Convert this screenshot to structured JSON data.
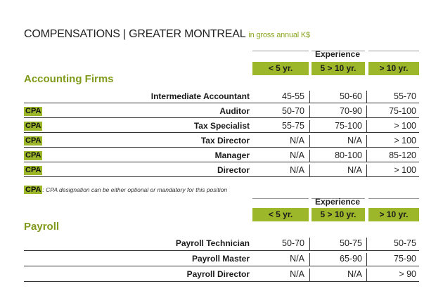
{
  "title": {
    "main": "COMPENSATIONS | GREATER MONTREAL",
    "sub": "in gross annual K$"
  },
  "experience_label": "Experience",
  "columns": [
    "< 5 yr.",
    "5 > 10 yr.",
    "> 10 yr."
  ],
  "accounting": {
    "heading": "Accounting Firms",
    "rows": [
      {
        "cpa": "",
        "role": "Intermediate Accountant",
        "v": [
          "45-55",
          "50-60",
          "55-70"
        ]
      },
      {
        "cpa": "CPA",
        "role": "Auditor",
        "v": [
          "50-70",
          "70-90",
          "75-100"
        ]
      },
      {
        "cpa": "CPA",
        "role": "Tax Specialist",
        "v": [
          "55-75",
          "75-100",
          "> 100"
        ]
      },
      {
        "cpa": "CPA",
        "role": "Tax Director",
        "v": [
          "N/A",
          "N/A",
          "> 100"
        ]
      },
      {
        "cpa": "CPA",
        "role": "Manager",
        "v": [
          "N/A",
          "80-100",
          "85-120"
        ]
      },
      {
        "cpa": "CPA",
        "role": "Director",
        "v": [
          "N/A",
          "N/A",
          "> 100"
        ]
      }
    ]
  },
  "note": {
    "badge": "CPA",
    "text": ": CPA designation can be either optional or mandatory for this position"
  },
  "payroll": {
    "heading": "Payroll",
    "rows": [
      {
        "role": "Payroll Technician",
        "v": [
          "50-70",
          "50-75",
          "50-75"
        ]
      },
      {
        "role": "Payroll Master",
        "v": [
          "N/A",
          "65-90",
          "75-90"
        ]
      },
      {
        "role": "Payroll Director",
        "v": [
          "N/A",
          "N/A",
          "> 90"
        ]
      }
    ]
  }
}
